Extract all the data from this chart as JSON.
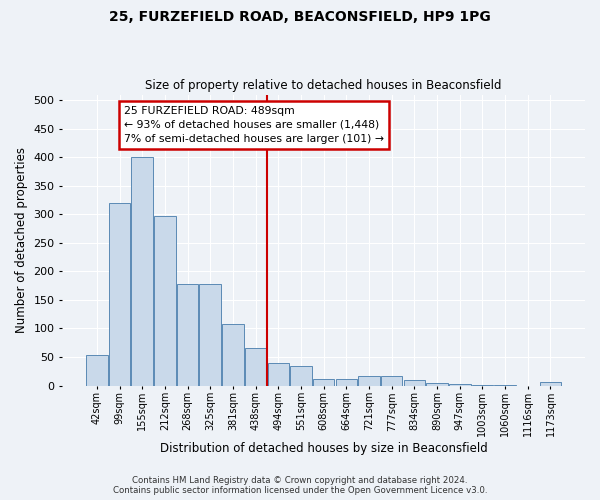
{
  "title": "25, FURZEFIELD ROAD, BEACONSFIELD, HP9 1PG",
  "subtitle": "Size of property relative to detached houses in Beaconsfield",
  "xlabel": "Distribution of detached houses by size in Beaconsfield",
  "ylabel": "Number of detached properties",
  "footer_line1": "Contains HM Land Registry data © Crown copyright and database right 2024.",
  "footer_line2": "Contains public sector information licensed under the Open Government Licence v3.0.",
  "categories": [
    "42sqm",
    "99sqm",
    "155sqm",
    "212sqm",
    "268sqm",
    "325sqm",
    "381sqm",
    "438sqm",
    "494sqm",
    "551sqm",
    "608sqm",
    "664sqm",
    "721sqm",
    "777sqm",
    "834sqm",
    "890sqm",
    "947sqm",
    "1003sqm",
    "1060sqm",
    "1116sqm",
    "1173sqm"
  ],
  "values": [
    54,
    320,
    400,
    297,
    178,
    178,
    108,
    65,
    40,
    35,
    11,
    11,
    16,
    16,
    9,
    5,
    2,
    1,
    1,
    0,
    7
  ],
  "bar_color": "#c9d9ea",
  "bar_edge_color": "#5a8ab5",
  "vline_index": 8,
  "vline_color": "#cc0000",
  "annotation_text_line1": "25 FURZEFIELD ROAD: 489sqm",
  "annotation_text_line2": "← 93% of detached houses are smaller (1,448)",
  "annotation_text_line3": "7% of semi-detached houses are larger (101) →",
  "annotation_box_color": "#cc0000",
  "ylim": [
    0,
    510
  ],
  "yticks": [
    0,
    50,
    100,
    150,
    200,
    250,
    300,
    350,
    400,
    450,
    500
  ],
  "bg_color": "#eef2f7",
  "plot_bg_color": "#eef2f7",
  "grid_color": "#ffffff",
  "title_fontsize": 10,
  "subtitle_fontsize": 8.5
}
